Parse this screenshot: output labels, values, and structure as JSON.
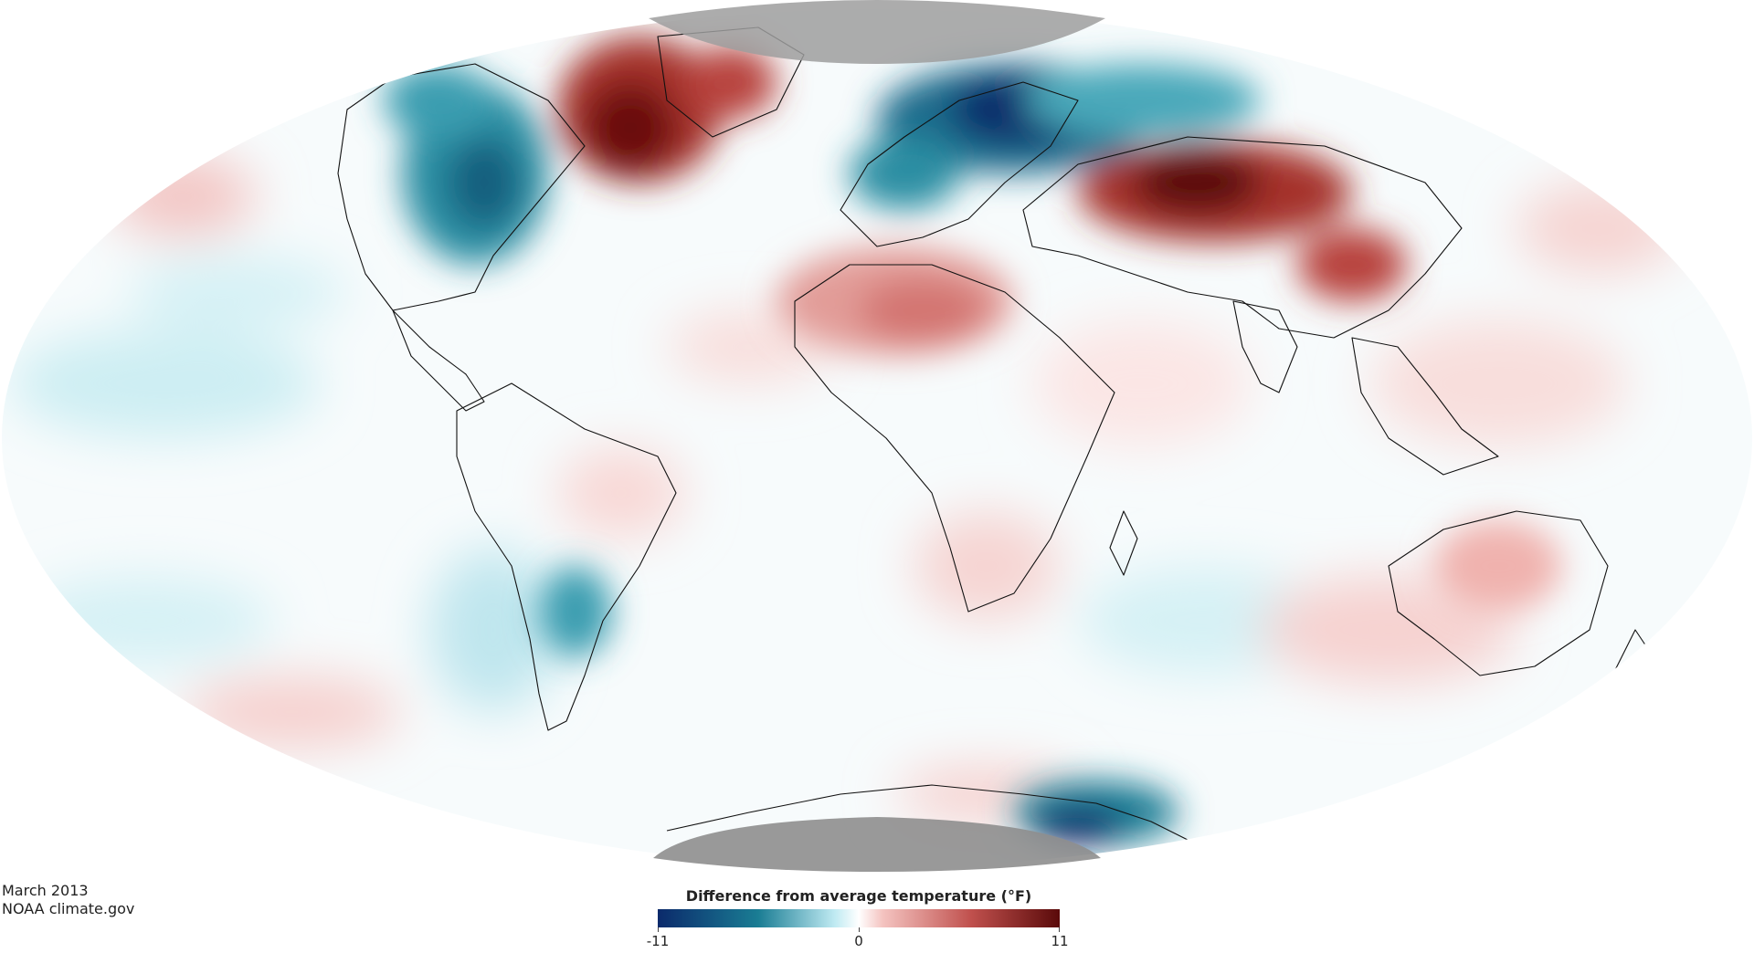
{
  "caption": {
    "date": "March 2013",
    "source": "NOAA climate.gov"
  },
  "legend": {
    "title": "Difference from average temperature (°F)",
    "min_label": "-11",
    "mid_label": "0",
    "max_label": "11",
    "min_value": -11,
    "mid_value": 0,
    "max_value": 11,
    "colors": [
      "#0b2a6b",
      "#1a7d94",
      "#bfeaf2",
      "#ffffff",
      "#f4c3c0",
      "#c0504d",
      "#5a0a0a"
    ]
  },
  "map": {
    "projection": "mollweide",
    "no_data_color": "#9e9e9e",
    "land_outline_color": "#111111"
  }
}
